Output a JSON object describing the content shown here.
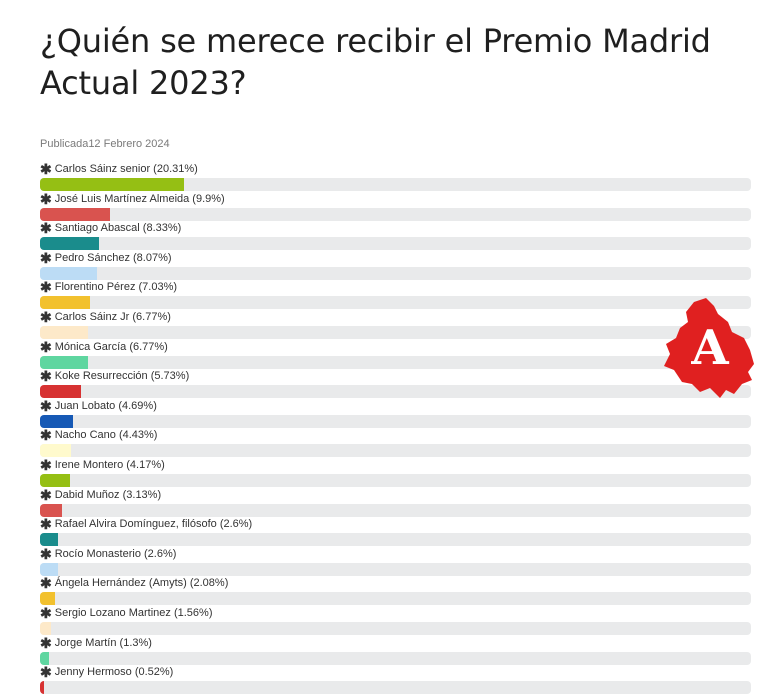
{
  "title": "¿Quién se merece recibir el Premio Madrid Actual 2023?",
  "published": "Publicada12 Febrero 2024",
  "logo_letter": "A",
  "chart_data": {
    "type": "bar",
    "orientation": "horizontal",
    "unit": "%",
    "xlim": [
      0,
      100
    ],
    "categories": [
      "Carlos Sáinz senior",
      "José Luis Martínez Almeida",
      "Santiago Abascal",
      "Pedro Sánchez",
      "Florentino Pérez",
      "Carlos Sáinz Jr",
      "Mónica García",
      "Koke Resurrección",
      "Juan Lobato",
      "Nacho Cano",
      "Irene Montero",
      "Dabid Muñoz",
      "Rafael Alvira Domínguez, filósofo",
      "Rocío Monasterio",
      "Ángela Hernández (Amyts)",
      "Sergio Lozano Martinez",
      "Jorge Martín",
      "Jenny Hermoso"
    ],
    "labels": [
      "Carlos Sáinz senior (20.31%)",
      "José Luis Martínez Almeida (9.9%)",
      "Santiago Abascal (8.33%)",
      "Pedro Sánchez (8.07%)",
      "Florentino Pérez (7.03%)",
      "Carlos Sáinz Jr (6.77%)",
      "Mónica García (6.77%)",
      "Koke Resurrección (5.73%)",
      "Juan Lobato (4.69%)",
      "Nacho Cano (4.43%)",
      "Irene Montero (4.17%)",
      "Dabid Muñoz (3.13%)",
      "Rafael Alvira Domínguez, filósofo (2.6%)",
      "Rocío Monasterio (2.6%)",
      "Ángela Hernández (Amyts) (2.08%)",
      "Sergio Lozano Martinez (1.56%)",
      "Jorge Martín (1.3%)",
      "Jenny Hermoso (0.52%)"
    ],
    "values": [
      20.31,
      9.9,
      8.33,
      8.07,
      7.03,
      6.77,
      6.77,
      5.73,
      4.69,
      4.43,
      4.17,
      3.13,
      2.6,
      2.6,
      2.08,
      1.56,
      1.3,
      0.52
    ],
    "colors": [
      "#95bf14",
      "#d9534f",
      "#1a8c8c",
      "#bcdcf5",
      "#f2c12e",
      "#fde9c9",
      "#5fd6a0",
      "#d73232",
      "#1659b5",
      "#fffacd",
      "#95bf14",
      "#d9534f",
      "#1a8c8c",
      "#bcdcf5",
      "#f2c12e",
      "#fde9c9",
      "#5fd6a0",
      "#d73232"
    ],
    "track_color": "#e9eaeb",
    "grid": false,
    "legend": "none"
  }
}
